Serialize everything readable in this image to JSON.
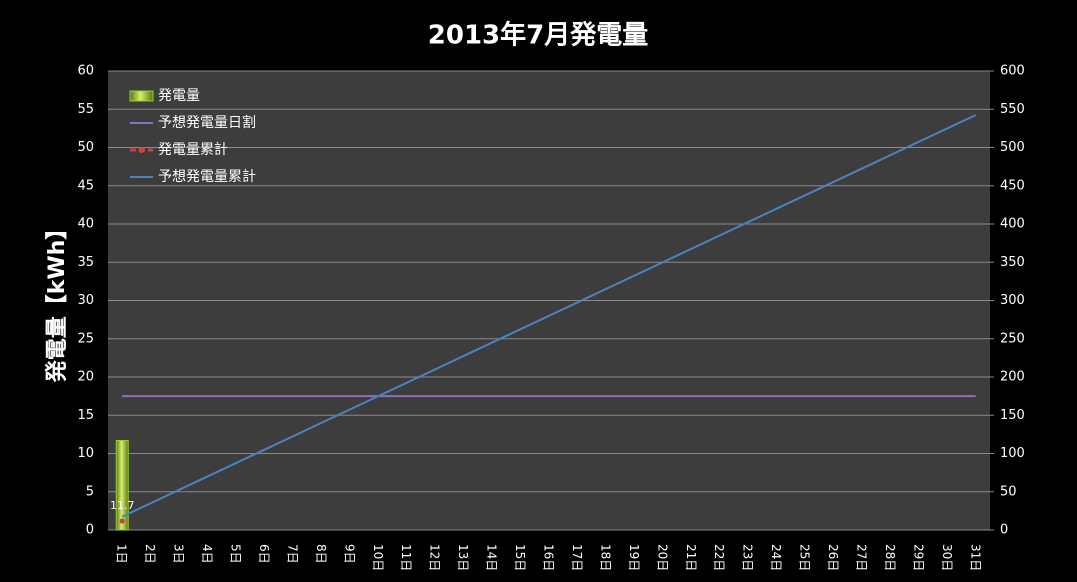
{
  "chart_data": {
    "type": "bar",
    "title": "2013年7月発電量",
    "y_label": "発電量【kWh】",
    "categories": [
      "1日",
      "2日",
      "3日",
      "4日",
      "5日",
      "6日",
      "7日",
      "8日",
      "9日",
      "10日",
      "11日",
      "12日",
      "13日",
      "14日",
      "15日",
      "16日",
      "17日",
      "18日",
      "19日",
      "20日",
      "21日",
      "22日",
      "23日",
      "24日",
      "25日",
      "26日",
      "27日",
      "28日",
      "29日",
      "30日",
      "31日"
    ],
    "ylim": [
      0,
      60
    ],
    "yticks": [
      0,
      5,
      10,
      15,
      20,
      25,
      30,
      35,
      40,
      45,
      50,
      55,
      60
    ],
    "y2lim": [
      0,
      600
    ],
    "y2ticks": [
      0,
      50,
      100,
      150,
      200,
      250,
      300,
      350,
      400,
      450,
      500,
      550,
      600
    ],
    "grid": true,
    "legend": "upper left",
    "series": [
      {
        "name": "発電量",
        "type": "bar",
        "color": "#9acd32",
        "values": [
          11.7,
          null,
          null,
          null,
          null,
          null,
          null,
          null,
          null,
          null,
          null,
          null,
          null,
          null,
          null,
          null,
          null,
          null,
          null,
          null,
          null,
          null,
          null,
          null,
          null,
          null,
          null,
          null,
          null,
          null,
          null
        ]
      },
      {
        "name": "予想発電量日割",
        "type": "line",
        "color": "#8e6fc0",
        "values": [
          17.5,
          17.5,
          17.5,
          17.5,
          17.5,
          17.5,
          17.5,
          17.5,
          17.5,
          17.5,
          17.5,
          17.5,
          17.5,
          17.5,
          17.5,
          17.5,
          17.5,
          17.5,
          17.5,
          17.5,
          17.5,
          17.5,
          17.5,
          17.5,
          17.5,
          17.5,
          17.5,
          17.5,
          17.5,
          17.5,
          17.5
        ]
      },
      {
        "name": "発電量累計",
        "type": "line",
        "axis": "y2",
        "color": "#d04040",
        "marker": true,
        "values": [
          11.7,
          null,
          null,
          null,
          null,
          null,
          null,
          null,
          null,
          null,
          null,
          null,
          null,
          null,
          null,
          null,
          null,
          null,
          null,
          null,
          null,
          null,
          null,
          null,
          null,
          null,
          null,
          null,
          null,
          null,
          null
        ]
      },
      {
        "name": "予想発電量累計",
        "type": "line",
        "axis": "y2",
        "color": "#4f81bd",
        "values": [
          17.5,
          35,
          52.5,
          70,
          87.5,
          105,
          122.5,
          140,
          157.5,
          175,
          192.5,
          210,
          227.5,
          245,
          262.5,
          280,
          297.5,
          315,
          332.5,
          350,
          367.5,
          385,
          402.5,
          420,
          437.5,
          455,
          472.5,
          490,
          507.5,
          525,
          542.5
        ]
      }
    ]
  }
}
